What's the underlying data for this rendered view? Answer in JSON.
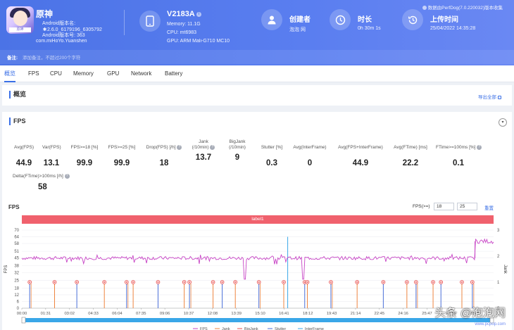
{
  "app": {
    "name": "原神",
    "android_version_name": "Android版本名:",
    "android_version_value": "2.6.0_6179196_6305792",
    "android_version_code": "Android版本号: 363",
    "package": "com.miHoYo.Yuanshen",
    "icon_caption": "原神"
  },
  "device": {
    "name": "V2183A",
    "memory": "Memory: 11.1G",
    "cpu": "CPU: mt6983",
    "gpu": "GPU: ARM Mali-G710 MC10"
  },
  "creator": {
    "title": "创建者",
    "value": "泡泡 网"
  },
  "duration": {
    "title": "时长",
    "value": "0h 30m 1s"
  },
  "upload": {
    "title": "上传时间",
    "value": "25/04/2022 14:35:28"
  },
  "brand": "数据由PerfDog(7.0.220032)版本收集",
  "note": {
    "label": "备注:",
    "placeholder": "添加备注，不超过200个字符"
  },
  "tabs": [
    "概览",
    "FPS",
    "CPU",
    "Memory",
    "GPU",
    "Network",
    "Battery"
  ],
  "overview": {
    "title": "概览",
    "export": "导出全部"
  },
  "fps_section": {
    "title": "FPS"
  },
  "metrics": [
    {
      "label1": "Avg(FPS)",
      "label2": "",
      "value": "44.9"
    },
    {
      "label1": "Var(FPS)",
      "label2": "",
      "value": "13.1"
    },
    {
      "label1": "FPS>=18 [%]",
      "label2": "",
      "value": "99.9"
    },
    {
      "label1": "FPS>=25 [%]",
      "label2": "",
      "value": "99.9"
    },
    {
      "label1": "Drop(FPS) [/h]",
      "label2": "",
      "value": "18"
    },
    {
      "label1": "Jank",
      "label2": "(/10min)",
      "value": "13.7"
    },
    {
      "label1": "BigJank",
      "label2": "(/10min)",
      "value": "9"
    },
    {
      "label1": "Stutter [%]",
      "label2": "",
      "value": "0.3"
    },
    {
      "label1": "Avg(InterFrame)",
      "label2": "",
      "value": "0"
    },
    {
      "label1": "Avg(FPS+InterFrame)",
      "label2": "",
      "value": "44.9"
    },
    {
      "label1": "Avg(FTime) [ms]",
      "label2": "",
      "value": "22.2"
    },
    {
      "label1": "FTime>=100ms [%]",
      "label2": "",
      "value": "0.1"
    },
    {
      "label1": "Delta(FTime)>100ms [/h]",
      "label2": "",
      "value": "58"
    }
  ],
  "chart_controls": {
    "title": "FPS",
    "threshold_label": "FPS(>=)",
    "threshold_low": "18",
    "threshold_high": "25",
    "reset": "重置"
  },
  "colors": {
    "header": "#4b73e6",
    "accent": "#3a6fe6",
    "fps": "#c845c6",
    "jank": "#ee8540",
    "bigjank": "#e84d4d",
    "stutter": "#4a6fd8",
    "interframe": "#3aa7e8",
    "label_bar": "#f0616d"
  },
  "watermark": {
    "text": "头条 @泡泡网",
    "sub": "www.pcpop.com"
  },
  "chart_data": {
    "type": "line",
    "label_bar": "label1",
    "xlabel": "",
    "ylabel": "FPS",
    "y2label": "Jank",
    "ylim": [
      0,
      70
    ],
    "y2lim": [
      0,
      3
    ],
    "yticks": [
      0,
      6,
      12,
      18,
      25,
      32,
      38,
      45,
      51,
      58,
      64,
      70
    ],
    "y2ticks": [
      0,
      1,
      2,
      3
    ],
    "x_ticks": [
      "00:00",
      "01:31",
      "03:02",
      "04:33",
      "06:04",
      "07:35",
      "09:06",
      "10:37",
      "12:08",
      "13:39",
      "15:10",
      "16:41",
      "18:12",
      "19:43",
      "21:14",
      "22:45",
      "24:16",
      "25:47",
      "27:18",
      "28:49"
    ],
    "duration_s": 1801,
    "fps_baseline": 44.9,
    "fps_end_level": 60,
    "fps_end_start_s": 1730,
    "series": [
      {
        "name": "FPS",
        "values": [
          45,
          45,
          44,
          45,
          45,
          45,
          44,
          45,
          45,
          45,
          45,
          44,
          45,
          45,
          45,
          45,
          45,
          44,
          45,
          45,
          45,
          45,
          45,
          45,
          44,
          45,
          45,
          45,
          45,
          45,
          45,
          45,
          45,
          44,
          45,
          45,
          45,
          45,
          45,
          58,
          60
        ]
      },
      {
        "name": "Jank",
        "values": []
      },
      {
        "name": "BigJank",
        "values": []
      },
      {
        "name": "Stutter",
        "values": []
      },
      {
        "name": "InterFrame",
        "values": []
      }
    ],
    "jank_marks_s": [
      30,
      125,
      210,
      315,
      400,
      425,
      520,
      620,
      640,
      730,
      765,
      815,
      905,
      1000,
      1080,
      1090,
      1180,
      1280,
      1380,
      1470,
      1505,
      1570,
      1600,
      1680,
      1720
    ],
    "fps_dips_s": [
      850,
      1075
    ],
    "fps_spike_s": 1015,
    "legend": [
      "FPS",
      "Jank",
      "BigJank",
      "Stutter",
      "InterFrame"
    ],
    "legend_position": "bottom"
  }
}
